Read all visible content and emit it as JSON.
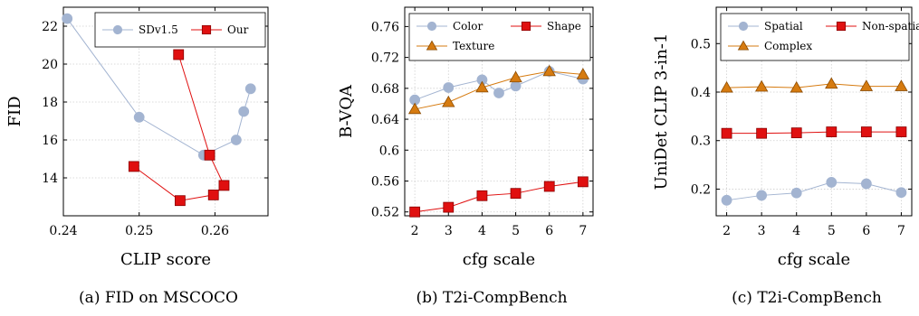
{
  "colors": {
    "sd": "#a3b4d1",
    "our": "#e01010",
    "texture": "#d67b10",
    "grid": "#cfcfcf",
    "axis": "#000000"
  },
  "chart_data": [
    {
      "type": "line",
      "caption": "(a) FID on MSCOCO",
      "xlabel": "CLIP score",
      "ylabel": "FID",
      "xlim": [
        0.24,
        0.267
      ],
      "ylim": [
        12.0,
        23.0
      ],
      "xticks": [
        0.24,
        0.25,
        0.26
      ],
      "xtick_labels": [
        "0.24",
        "0.25",
        "0.26"
      ],
      "yticks": [
        14,
        16,
        18,
        20,
        22
      ],
      "ytick_labels": [
        "14",
        "16",
        "18",
        "20",
        "22"
      ],
      "grid": true,
      "legend": "top-right",
      "legend_layout": "row",
      "series": [
        {
          "name": "SDv1.5",
          "marker": "circle",
          "color": "#a3b4d1",
          "x": [
            0.2405,
            0.25,
            0.2585,
            0.2628,
            0.2638,
            0.2647
          ],
          "y": [
            22.4,
            17.2,
            15.2,
            16.0,
            17.5,
            18.7
          ]
        },
        {
          "name": "Our",
          "marker": "square",
          "color": "#e01010",
          "x": [
            0.2552,
            0.2593,
            0.2612,
            0.2598,
            0.2554,
            0.2493
          ],
          "y": [
            20.5,
            15.2,
            13.6,
            13.1,
            12.8,
            14.6
          ]
        }
      ]
    },
    {
      "type": "line",
      "caption": "(b) T2i-CompBench",
      "xlabel": "cfg scale",
      "ylabel": "B-VQA",
      "xlim": [
        1.7,
        7.3
      ],
      "ylim": [
        0.515,
        0.785
      ],
      "xticks": [
        2,
        3,
        4,
        5,
        6,
        7
      ],
      "xtick_labels": [
        "2",
        "3",
        "4",
        "5",
        "6",
        "7"
      ],
      "yticks": [
        0.52,
        0.56,
        0.6,
        0.64,
        0.68,
        0.72,
        0.76
      ],
      "ytick_labels": [
        "0.52",
        "0.56",
        "0.6",
        "0.64",
        "0.68",
        "0.72",
        "0.76"
      ],
      "grid": true,
      "legend": "top",
      "legend_layout": "two-column",
      "series": [
        {
          "name": "Color",
          "marker": "circle",
          "color": "#a3b4d1",
          "x": [
            2,
            3,
            4,
            4.5,
            5,
            6,
            7
          ],
          "y": [
            0.665,
            0.681,
            0.691,
            0.674,
            0.683,
            0.702,
            0.692
          ]
        },
        {
          "name": "Shape",
          "marker": "square",
          "color": "#e01010",
          "x": [
            2,
            3,
            4,
            5,
            6,
            7
          ],
          "y": [
            0.52,
            0.526,
            0.541,
            0.544,
            0.553,
            0.559
          ]
        },
        {
          "name": "Texture",
          "marker": "triangle",
          "color": "#d67b10",
          "x": [
            2,
            3,
            4,
            5,
            6,
            7
          ],
          "y": [
            0.653,
            0.662,
            0.681,
            0.694,
            0.702,
            0.698
          ]
        }
      ]
    },
    {
      "type": "line",
      "caption": "(c) T2i-CompBench",
      "xlabel": "cfg scale",
      "ylabel": "UniDet CLIP 3-in-1",
      "xlim": [
        1.7,
        7.3
      ],
      "ylim": [
        0.145,
        0.575
      ],
      "xticks": [
        2,
        3,
        4,
        5,
        6,
        7
      ],
      "xtick_labels": [
        "2",
        "3",
        "4",
        "5",
        "6",
        "7"
      ],
      "yticks": [
        0.2,
        0.3,
        0.4,
        0.5
      ],
      "ytick_labels": [
        "0.2",
        "0.3",
        "0.4",
        "0.5"
      ],
      "grid": true,
      "legend": "top",
      "legend_layout": "two-column",
      "series": [
        {
          "name": "Spatial",
          "marker": "circle",
          "color": "#a3b4d1",
          "x": [
            2,
            3,
            4,
            5,
            6,
            7
          ],
          "y": [
            0.177,
            0.187,
            0.192,
            0.214,
            0.211,
            0.193
          ]
        },
        {
          "name": "Non-spatial",
          "marker": "square",
          "color": "#e01010",
          "x": [
            2,
            3,
            4,
            5,
            6,
            7
          ],
          "y": [
            0.315,
            0.315,
            0.316,
            0.318,
            0.318,
            0.318
          ]
        },
        {
          "name": "Complex",
          "marker": "triangle",
          "color": "#d67b10",
          "x": [
            2,
            3,
            4,
            5,
            6,
            7
          ],
          "y": [
            0.409,
            0.411,
            0.409,
            0.417,
            0.412,
            0.412
          ]
        }
      ]
    }
  ]
}
